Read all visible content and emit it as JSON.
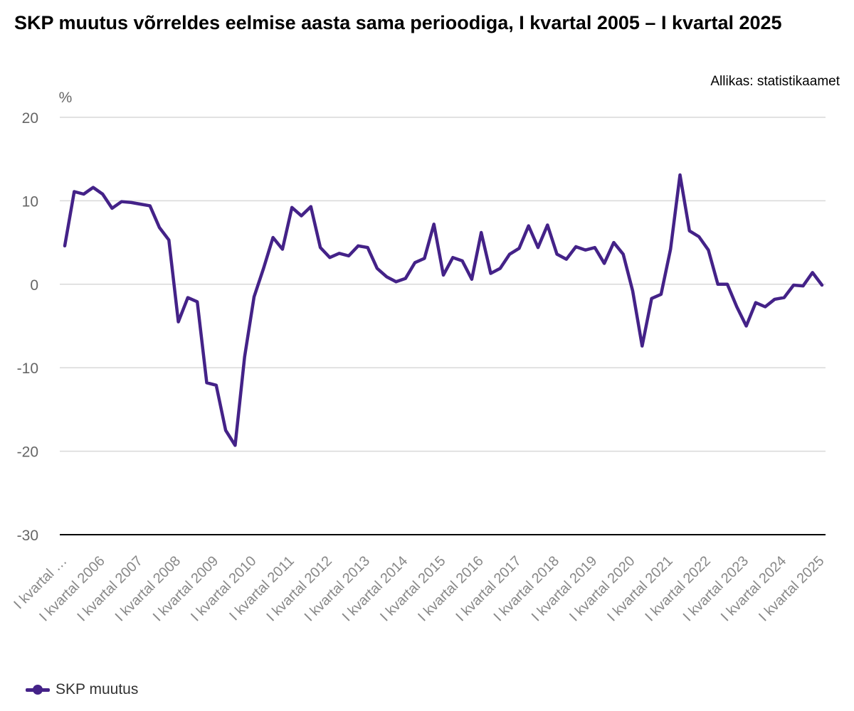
{
  "title": "SKP muutus võrreldes eelmise aasta sama perioodiga, I kvartal 2005 – I kvartal 2025",
  "source": "Allikas: statistikaamet",
  "chart_data": {
    "type": "line",
    "title": "SKP muutus võrreldes eelmise aasta sama perioodiga, I kvartal 2005 – I kvartal 2025",
    "ylabel": "%",
    "ylim": [
      -30,
      20
    ],
    "yticks": [
      20,
      10,
      0,
      -10,
      -20,
      -30
    ],
    "grid": true,
    "legend_position": "bottom-left",
    "color": "#442288",
    "category_labels": [
      "I kvartal …",
      "I kvartal 2006",
      "I kvartal 2007",
      "I kvartal 2008",
      "I kvartal 2009",
      "I kvartal 2010",
      "I kvartal 2011",
      "I kvartal 2012",
      "I kvartal 2013",
      "I kvartal 2014",
      "I kvartal 2015",
      "I kvartal 2016",
      "I kvartal 2017",
      "I kvartal 2018",
      "I kvartal 2019",
      "I kvartal 2020",
      "I kvartal 2021",
      "I kvartal 2022",
      "I kvartal 2023",
      "I kvartal 2024",
      "I kvartal 2025"
    ],
    "series": [
      {
        "name": "SKP muutus",
        "values": [
          4.6,
          11.1,
          10.8,
          11.6,
          10.8,
          9.1,
          9.9,
          9.8,
          9.6,
          9.4,
          6.8,
          5.3,
          -4.5,
          -1.6,
          -2.1,
          -11.8,
          -12.1,
          -17.5,
          -19.3,
          -8.7,
          -1.5,
          1.9,
          5.6,
          4.2,
          9.2,
          8.2,
          9.3,
          4.4,
          3.2,
          3.7,
          3.4,
          4.6,
          4.4,
          1.9,
          0.9,
          0.3,
          0.7,
          2.6,
          3.1,
          7.2,
          1.1,
          3.2,
          2.8,
          0.6,
          6.2,
          1.3,
          1.9,
          3.6,
          4.3,
          7.0,
          4.4,
          7.1,
          3.6,
          3.0,
          4.5,
          4.1,
          4.4,
          2.5,
          5.0,
          3.6,
          -0.8,
          -7.4,
          -1.7,
          -1.2,
          4.2,
          13.1,
          6.4,
          5.7,
          4.1,
          0.0,
          0.0,
          -2.7,
          -5.0,
          -2.2,
          -2.7,
          -1.8,
          -1.6,
          -0.1,
          -0.2,
          1.4,
          -0.1
        ]
      }
    ]
  }
}
